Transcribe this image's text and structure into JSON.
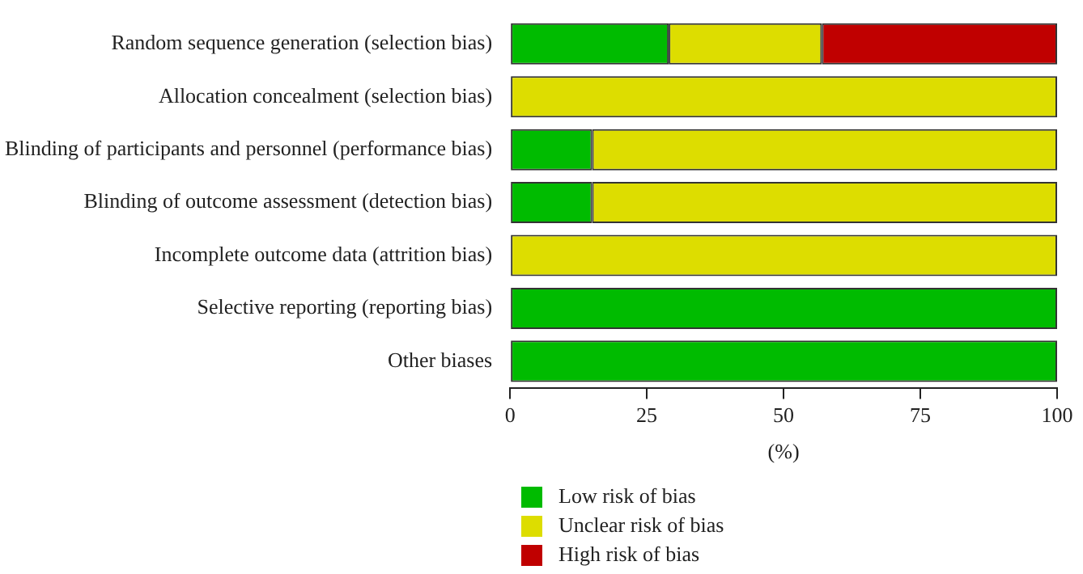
{
  "chart_data": {
    "type": "bar",
    "orientation": "horizontal",
    "stacked": true,
    "categories": [
      "Random sequence generation (selection bias)",
      "Allocation concealment (selection bias)",
      "Blinding of participants and personnel (performance bias)",
      "Blinding of outcome assessment (detection bias)",
      "Incomplete outcome data (attrition bias)",
      "Selective reporting (reporting bias)",
      "Other biases"
    ],
    "series": [
      {
        "name": "Low risk of bias",
        "color": "#00bb00",
        "values": [
          29,
          0,
          15,
          15,
          0,
          100,
          100
        ]
      },
      {
        "name": "Unclear risk of bias",
        "color": "#dddd00",
        "values": [
          28,
          100,
          85,
          85,
          100,
          0,
          0
        ]
      },
      {
        "name": "High risk of bias",
        "color": "#c00000",
        "values": [
          43,
          0,
          0,
          0,
          0,
          0,
          0
        ]
      }
    ],
    "xlabel": "(%)",
    "xlim": [
      0,
      100
    ],
    "xticks": [
      0,
      25,
      50,
      75,
      100
    ],
    "grid": false,
    "legend": "bottom"
  }
}
